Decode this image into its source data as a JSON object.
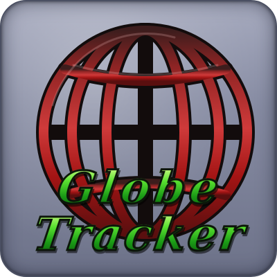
{
  "app_icon": {
    "icon_name": "globe-icon",
    "title_line_1": "Globe",
    "title_line_2": "Tracker",
    "colors": {
      "tile_top": "#a7abbf",
      "tile_bottom": "#6d7289",
      "globe_highlight": "#d24a4a",
      "globe_main": "#b01818",
      "globe_shadow": "#3a1a1a",
      "globe_outline": "#151010",
      "text_green": "#2fbf20",
      "text_outline": "#0c140a"
    }
  }
}
